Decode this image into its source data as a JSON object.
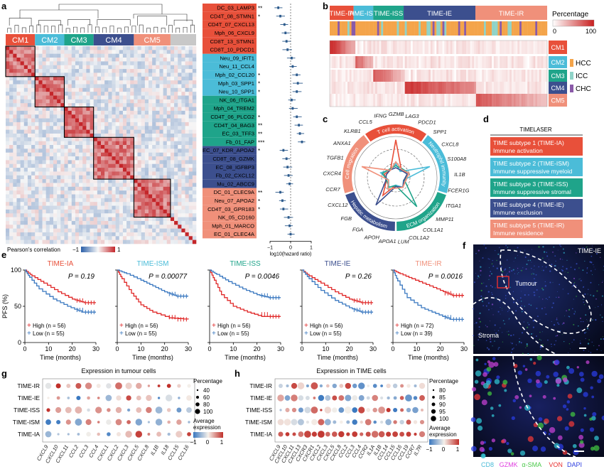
{
  "panels": {
    "a": "a",
    "b": "b",
    "c": "c",
    "d": "d",
    "e": "e",
    "f": "f",
    "g": "g",
    "h": "h"
  },
  "colors": {
    "CM1": "#e8503a",
    "CM2": "#4bbcd8",
    "CM3": "#1fa48a",
    "CM4": "#3c4f8e",
    "CM5": "#f0907a",
    "gray": "#c8c8c8"
  },
  "panel_a": {
    "clusters": [
      {
        "name": "CM1",
        "color": "#e8503a"
      },
      {
        "name": "CM2",
        "color": "#4bbcd8"
      },
      {
        "name": "CM3",
        "color": "#1fa48a"
      },
      {
        "name": "CM4",
        "color": "#3c4f8e"
      },
      {
        "name": "CM5",
        "color": "#f0907a"
      },
      {
        "name": "",
        "color": "#c8c8c8"
      }
    ],
    "legend_label": "Pearson's correlation",
    "legend_min": "−1",
    "legend_max": "1",
    "forest_xlabel": "log10(hazard ratio)",
    "forest_ticks": [
      "−1",
      "0",
      "1"
    ],
    "rows": [
      {
        "label": "DC_03_LAMP3",
        "cm": 0,
        "sig": "**",
        "hr": -0.6
      },
      {
        "label": "CD4T_08_STMN1",
        "cm": 0,
        "sig": "*",
        "hr": -0.5
      },
      {
        "label": "CD4T_07_CXCL13",
        "cm": 0,
        "sig": "",
        "hr": -0.3
      },
      {
        "label": "Mph_06_CXCL9",
        "cm": 0,
        "sig": "",
        "hr": -0.25
      },
      {
        "label": "CD8T_13_STMN1",
        "cm": 0,
        "sig": "",
        "hr": -0.2
      },
      {
        "label": "CD8T_10_PDCD1",
        "cm": 0,
        "sig": "",
        "hr": -0.15
      },
      {
        "label": "Neu_09_IFIT1",
        "cm": 1,
        "sig": "",
        "hr": 0.05
      },
      {
        "label": "Neu_11_CCL4",
        "cm": 1,
        "sig": "",
        "hr": 0.1
      },
      {
        "label": "Mph_02_CCL20",
        "cm": 1,
        "sig": "*",
        "hr": 0.3
      },
      {
        "label": "Mph_03_SPP1",
        "cm": 1,
        "sig": "*",
        "hr": 0.35
      },
      {
        "label": "Neu_10_SPP1",
        "cm": 1,
        "sig": "*",
        "hr": 0.3
      },
      {
        "label": "NK_06_ITGA1",
        "cm": 2,
        "sig": "",
        "hr": 0.05
      },
      {
        "label": "Mph_04_TREM2",
        "cm": 2,
        "sig": "",
        "hr": 0.1
      },
      {
        "label": "CD4T_06_PLCG2",
        "cm": 2,
        "sig": "*",
        "hr": 0.3
      },
      {
        "label": "CD4T_04_BAG3",
        "cm": 2,
        "sig": "**",
        "hr": 0.4
      },
      {
        "label": "EC_03_TFF3",
        "cm": 2,
        "sig": "**",
        "hr": 0.45
      },
      {
        "label": "Fb_01_FAP",
        "cm": 2,
        "sig": "***",
        "hr": 0.55
      },
      {
        "label": "EC_07_KDR_APOA2",
        "cm": 3,
        "sig": "*",
        "hr": -0.35
      },
      {
        "label": "CD8T_08_GZMK",
        "cm": 3,
        "sig": "",
        "hr": -0.2
      },
      {
        "label": "EC_08_IGFBP3",
        "cm": 3,
        "sig": "",
        "hr": -0.15
      },
      {
        "label": "Fb_02_CXCL12",
        "cm": 3,
        "sig": "",
        "hr": -0.1
      },
      {
        "label": "Mu_02_ABCC9",
        "cm": 3,
        "sig": "",
        "hr": -0.05
      },
      {
        "label": "DC_01_CLEC9A",
        "cm": 4,
        "sig": "**",
        "hr": -0.5
      },
      {
        "label": "Neu_07_APOA2",
        "cm": 4,
        "sig": "*",
        "hr": -0.4
      },
      {
        "label": "CD4T_03_GPR183",
        "cm": 4,
        "sig": "*",
        "hr": -0.35
      },
      {
        "label": "NK_05_CD160",
        "cm": 4,
        "sig": "",
        "hr": -0.1
      },
      {
        "label": "Mph_01_MARCO",
        "cm": 4,
        "sig": "",
        "hr": -0.05
      },
      {
        "label": "EC_01_CLEC4A",
        "cm": 4,
        "sig": "",
        "hr": 0.0
      }
    ]
  },
  "panel_b": {
    "subtypes": [
      {
        "name": "TIME-IA",
        "color": "#e8503a",
        "w": 0.11
      },
      {
        "name": "TIME-ISM",
        "color": "#4bbcd8",
        "w": 0.09
      },
      {
        "name": "TIME-ISS",
        "color": "#1fa48a",
        "w": 0.14
      },
      {
        "name": "TIME-IE",
        "color": "#3c4f8e",
        "w": 0.33
      },
      {
        "name": "TIME-IR",
        "color": "#f0907a",
        "w": 0.33
      }
    ],
    "legend_title": "Percentage",
    "legend_min": "0",
    "legend_max": "100",
    "cms": [
      "CM1",
      "CM2",
      "CM3",
      "CM4",
      "CM5"
    ],
    "cancer_types": [
      {
        "name": "HCC",
        "color": "#f4a44a"
      },
      {
        "name": "ICC",
        "color": "#8fd3c8"
      },
      {
        "name": "CHC",
        "color": "#8a5aa8"
      }
    ]
  },
  "panel_c": {
    "sectors": [
      {
        "name": "T cell activation",
        "color": "#e8503a"
      },
      {
        "name": "Neutrophil immunity",
        "color": "#4bbcd8"
      },
      {
        "name": "ECM organization",
        "color": "#1fa48a"
      },
      {
        "name": "Hepatic metabolism",
        "color": "#3c4f8e"
      },
      {
        "name": "Cell migration",
        "color": "#f0907a"
      }
    ],
    "genes": [
      "GZMB",
      "LAG3",
      "PDCD1",
      "SPP1",
      "CXCL8",
      "S100A8",
      "IL1B",
      "FCER1G",
      "ITGA1",
      "MMP11",
      "COL1A1",
      "COL1A2",
      "LUM",
      "APOA1",
      "APOH",
      "FGA",
      "FGB",
      "CXCL12",
      "CCR7",
      "CXCR4",
      "TGFB1",
      "ANXA1",
      "KLRB1",
      "CCL5",
      "IFNG"
    ]
  },
  "panel_d": {
    "title": "TIMELASER",
    "items": [
      {
        "line1": "TIME subtype 1 (TIME-IA)",
        "line2": "Immune activation",
        "color": "#e8503a"
      },
      {
        "line1": "TIME subtype 2 (TIME-ISM)",
        "line2": "Immune suppressive myeloid",
        "color": "#4bbcd8"
      },
      {
        "line1": "TIME subtype 3 (TIME-ISS)",
        "line2": "Immune suppressive stromal",
        "color": "#1fa48a"
      },
      {
        "line1": "TIME subtype 4 (TIME-IE)",
        "line2": "Immune exclusion",
        "color": "#3c4f8e"
      },
      {
        "line1": "TIME subtype 5 (TIME-IR)",
        "line2": "Immune residence",
        "color": "#f0907a"
      }
    ]
  },
  "panel_e": {
    "ylabel": "PFS (%)",
    "xlabel": "Time (months)",
    "xticks": [
      "0",
      "10",
      "20",
      "30"
    ],
    "yticks": [
      "0",
      "50",
      "100"
    ],
    "plots": [
      {
        "title": "TIME-IA",
        "color": "#e8503a",
        "p": "P = 0.19",
        "high": "High (n = 56)",
        "low": "Low (n = 55)"
      },
      {
        "title": "TIME-ISM",
        "color": "#4bbcd8",
        "p": "P = 0.00077",
        "high": "High (n = 56)",
        "low": "Low (n = 55)"
      },
      {
        "title": "TIME-ISS",
        "color": "#1fa48a",
        "p": "P = 0.0046",
        "high": "High (n = 56)",
        "low": "Low (n = 55)"
      },
      {
        "title": "TIME-IE",
        "color": "#3c4f8e",
        "p": "P = 0.26",
        "high": "High (n = 56)",
        "low": "Low (n = 55)"
      },
      {
        "title": "TIME-IR",
        "color": "#f0907a",
        "p": "P = 0.0016",
        "high": "High (n = 72)",
        "low": "Low (n = 39)"
      }
    ]
  },
  "panel_f": {
    "label": "TIME-IE",
    "tumour": "Tumour",
    "stroma": "Stroma",
    "stains": [
      {
        "name": "CD8",
        "color": "#4bbcd8"
      },
      {
        "name": "GZMK",
        "color": "#e040e0"
      },
      {
        "name": "α-SMA",
        "color": "#4ac84a"
      },
      {
        "name": "VON",
        "color": "#e83030"
      },
      {
        "name": "DAPI",
        "color": "#3040e0"
      }
    ]
  },
  "panel_g": {
    "title": "Expression in tumour cells",
    "rows": [
      "TIME-IR",
      "TIME-IE",
      "TIME-ISS",
      "TIME-ISM",
      "TIME-IA"
    ],
    "genes": [
      "CXCL9",
      "CXCL10",
      "CXCL11",
      "CCL2",
      "CCL3",
      "CCL4",
      "CXCL1",
      "CXCL2",
      "CXCL3",
      "CXCL5",
      "CXCL8",
      "IL1B",
      "IL18",
      "CCL15",
      "CCL16"
    ],
    "size_title": "Percentage",
    "sizes": [
      "40",
      "60",
      "80",
      "100"
    ],
    "color_title": "Average expression",
    "color_ticks": [
      "−1",
      "0",
      "1"
    ]
  },
  "panel_h": {
    "title": "Expression in TIME cells",
    "rows": [
      "TIME-IR",
      "TIME-IE",
      "TIME-ISS",
      "TIME-ISM",
      "TIME-IA"
    ],
    "genes": [
      "CXCL9",
      "CXCL10",
      "CXCL11",
      "CXCL13",
      "CXCR3",
      "CXCR1",
      "CXCL2",
      "CXCL3",
      "CXCL5",
      "CXCL8",
      "CCL2",
      "CCL3",
      "CCL4",
      "CCR2",
      "IL1A",
      "IL1B",
      "CCL14",
      "CCL15",
      "CCL16",
      "CCL19",
      "CCR7",
      "IL7R"
    ],
    "size_title": "Percentage",
    "sizes": [
      "80",
      "85",
      "90",
      "95",
      "100"
    ],
    "color_title": "Average expression",
    "color_ticks": [
      "−1",
      "0",
      "1"
    ]
  }
}
